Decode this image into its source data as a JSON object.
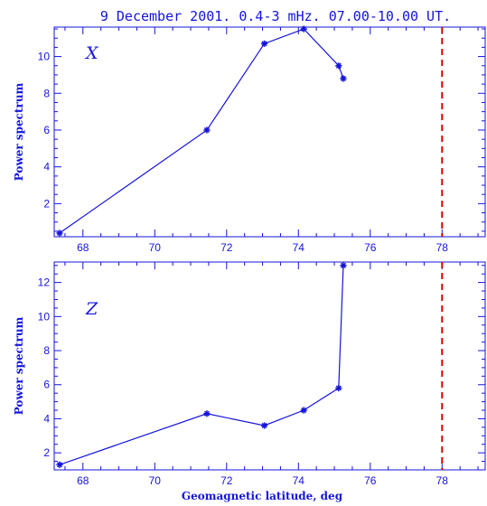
{
  "chart_data": [
    {
      "type": "line",
      "title": "9 December 2001. 0.4-3 mHz. 07.00-10.00 UT.",
      "panel_label": "X",
      "ylabel": "Power spectrum",
      "xlabel": "",
      "xlim": [
        67.2,
        79.2
      ],
      "ylim": [
        0.2,
        11.6
      ],
      "xticks": [
        68,
        70,
        72,
        74,
        76,
        78
      ],
      "yticks": [
        2,
        4,
        6,
        8,
        10
      ],
      "x": [
        67.35,
        71.45,
        73.05,
        74.15,
        75.12,
        75.25
      ],
      "y": [
        0.4,
        6.0,
        10.7,
        11.5,
        9.5,
        8.8
      ],
      "reference_line_x": 78.0,
      "line_color": "#1414dc",
      "reference_color": "#e00000"
    },
    {
      "type": "line",
      "title": "",
      "panel_label": "Z",
      "ylabel": "Power spectrum",
      "xlabel": "Geomagnetic latitude, deg",
      "xlim": [
        67.2,
        79.2
      ],
      "ylim": [
        1.0,
        13.2
      ],
      "xticks": [
        68,
        70,
        72,
        74,
        76,
        78
      ],
      "yticks": [
        2,
        4,
        6,
        8,
        10,
        12
      ],
      "x": [
        67.35,
        71.45,
        73.05,
        74.15,
        75.12,
        75.25
      ],
      "y": [
        1.3,
        4.3,
        3.6,
        4.5,
        5.8,
        13.0
      ],
      "reference_line_x": 78.0,
      "line_color": "#1414dc",
      "reference_color": "#e00000"
    }
  ]
}
